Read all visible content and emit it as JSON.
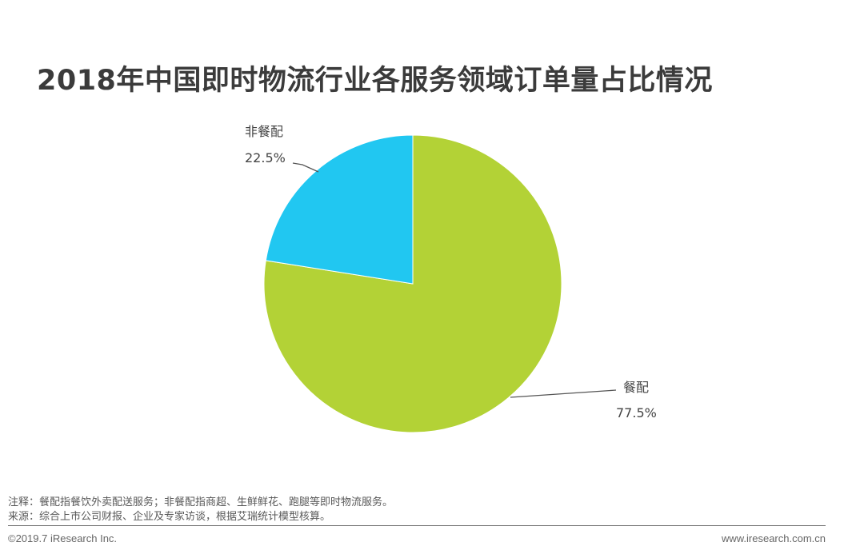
{
  "chart_data": {
    "type": "pie",
    "title": "2018年中国即时物流行业各服务领域订单量占比情况",
    "slices": [
      {
        "label": "餐配",
        "value": 77.5,
        "display": "77.5%",
        "color": "#b3d236"
      },
      {
        "label": "非餐配",
        "value": 22.5,
        "display": "22.5%",
        "color": "#21c7f1"
      }
    ]
  },
  "footer": {
    "note": "注释：餐配指餐饮外卖配送服务；非餐配指商超、生鲜鲜花、跑腿等即时物流服务。",
    "source": "来源：综合上市公司财报、企业及专家访谈，根据艾瑞统计模型核算。",
    "copyright": "©2019.7 iResearch Inc.",
    "website": "www.iresearch.com.cn"
  }
}
